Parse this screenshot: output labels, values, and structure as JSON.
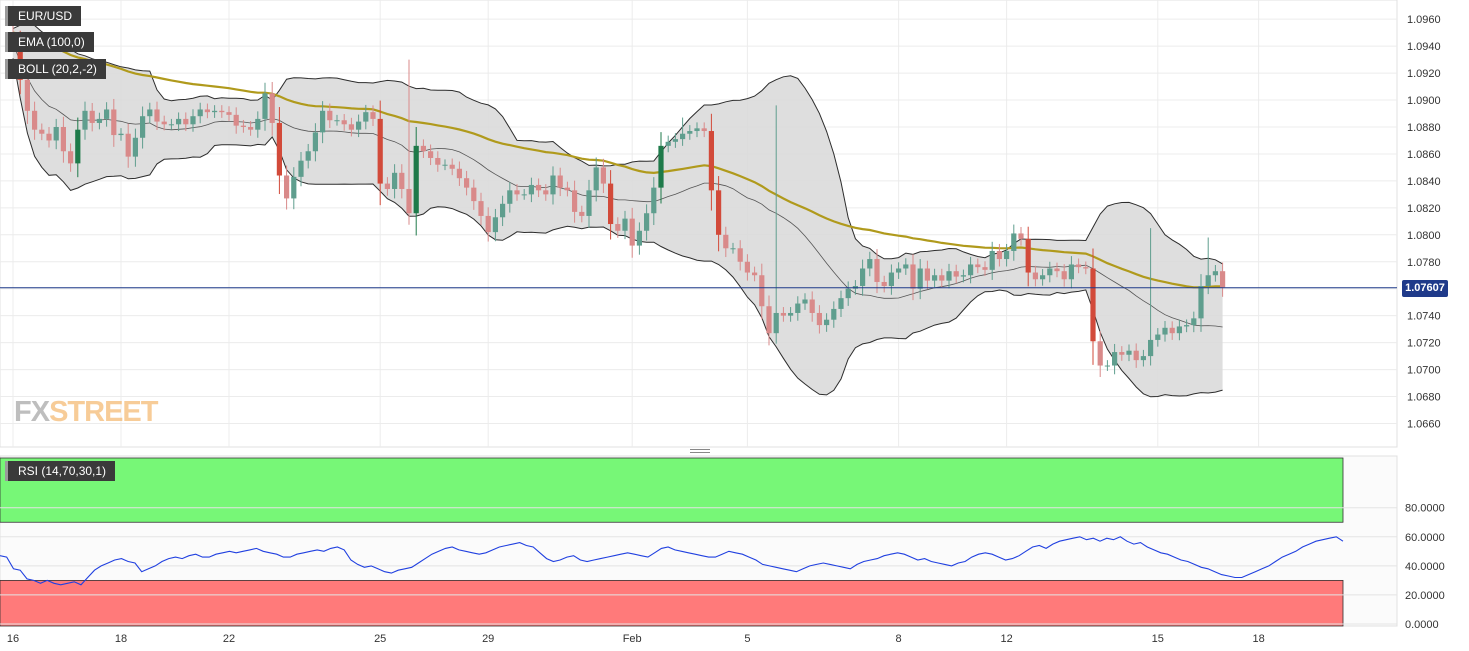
{
  "instrument": "EUR/USD",
  "indicators": {
    "ema_label": "EMA (100,0)",
    "boll_label": "BOLL (20,2,-2)",
    "rsi_label": "RSI (14,70,30,1)"
  },
  "last_price": "1.07607",
  "logo": {
    "fx": "FX",
    "street": "STREET"
  },
  "colors": {
    "up": "#5f9e8e",
    "up_strong": "#1e7a4a",
    "down": "#d98a8a",
    "down_strong": "#d24a3a",
    "ema": "#b09a1c",
    "band_fill": "#dadada",
    "last_price_line": "#1f3a8a",
    "rsi_line": "#2040e0",
    "rsi_overbought_zone": "#77f777",
    "rsi_oversold_zone": "#ff7a7a"
  },
  "chart_data": [
    {
      "type": "candlestick",
      "title": "",
      "y_ticks": [
        "1.0960",
        "1.0940",
        "1.0920",
        "1.0900",
        "1.0880",
        "1.0860",
        "1.0840",
        "1.0820",
        "1.0800",
        "1.0780",
        "1.0760",
        "1.0740",
        "1.0720",
        "1.0700",
        "1.0680",
        "1.0660"
      ],
      "ylim": [
        1.0647,
        1.0972
      ],
      "x_ticks": [
        {
          "label": "16",
          "i": 0
        },
        {
          "label": "18",
          "i": 15
        },
        {
          "label": "22",
          "i": 30
        },
        {
          "label": "25",
          "i": 51
        },
        {
          "label": "29",
          "i": 66
        },
        {
          "label": "Feb",
          "i": 86
        },
        {
          "label": "5",
          "i": 102
        },
        {
          "label": "8",
          "i": 123
        },
        {
          "label": "12",
          "i": 138
        },
        {
          "label": "15",
          "i": 159
        },
        {
          "label": "18",
          "i": 173
        }
      ],
      "grid": true,
      "last_price": 1.07607,
      "close": [
        1.0942,
        1.0915,
        1.0892,
        1.0878,
        1.0875,
        1.087,
        1.088,
        1.0862,
        1.0853,
        1.0878,
        1.0892,
        1.0883,
        1.0886,
        1.0893,
        1.0874,
        1.0875,
        1.0858,
        1.0872,
        1.0888,
        1.0893,
        1.0884,
        1.0882,
        1.0882,
        1.0886,
        1.0882,
        1.0888,
        1.0893,
        1.0891,
        1.0892,
        1.0891,
        1.0889,
        1.0881,
        1.088,
        1.0878,
        1.0886,
        1.0905,
        1.0883,
        1.0844,
        1.0827,
        1.0843,
        1.0855,
        1.0862,
        1.0876,
        1.0892,
        1.0885,
        1.0885,
        1.0882,
        1.0878,
        1.0884,
        1.0891,
        1.0886,
        1.0838,
        1.0834,
        1.0846,
        1.0834,
        1.0816,
        1.0866,
        1.0862,
        1.0857,
        1.0852,
        1.0852,
        1.0849,
        1.0842,
        1.0835,
        1.0825,
        1.0814,
        1.0802,
        1.0813,
        1.0823,
        1.0833,
        1.083,
        1.083,
        1.0837,
        1.0833,
        1.083,
        1.0844,
        1.0835,
        1.0833,
        1.0817,
        1.0814,
        1.0833,
        1.085,
        1.0838,
        1.0808,
        1.0803,
        1.0812,
        1.0792,
        1.0803,
        1.0816,
        1.0835,
        1.0866,
        1.0869,
        1.0871,
        1.0875,
        1.0877,
        1.0879,
        1.0877,
        1.0833,
        1.08,
        1.079,
        1.079,
        1.078,
        1.0772,
        1.077,
        1.0747,
        1.0727,
        1.0742,
        1.074,
        1.0742,
        1.0749,
        1.0752,
        1.0742,
        1.0733,
        1.0737,
        1.0745,
        1.0753,
        1.076,
        1.0762,
        1.0775,
        1.0782,
        1.0765,
        1.0762,
        1.0772,
        1.0775,
        1.0778,
        1.076,
        1.0775,
        1.0766,
        1.077,
        1.0766,
        1.0773,
        1.0769,
        1.077,
        1.0778,
        1.0776,
        1.0774,
        1.0788,
        1.0782,
        1.0788,
        1.0801,
        1.0797,
        1.0772,
        1.0767,
        1.077,
        1.0775,
        1.0773,
        1.0767,
        1.0778,
        1.0776,
        1.0775,
        1.0721,
        1.0703,
        1.0703,
        1.0713,
        1.0711,
        1.0714,
        1.0707,
        1.071,
        1.0722,
        1.0726,
        1.0731,
        1.0727,
        1.0732,
        1.0733,
        1.0738,
        1.0762,
        1.077,
        1.0773,
        1.0761
      ],
      "highs": [
        {
          "i": 55,
          "value": 1.093
        },
        {
          "i": 93,
          "value": 1.0887
        },
        {
          "i": 106,
          "value": 1.0896
        },
        {
          "i": 158,
          "value": 1.0805
        },
        {
          "i": 166,
          "value": 1.0798
        },
        {
          "i": 183,
          "value": 1.0785
        }
      ]
    },
    {
      "type": "line",
      "title": "",
      "y_ticks": [
        "80.0000",
        "60.0000",
        "40.0000",
        "20.0000",
        "0.0000"
      ],
      "ylim": [
        0,
        100
      ],
      "levels": {
        "overbought": 70,
        "oversold": 30
      },
      "values": [
        47,
        46,
        38,
        37,
        31,
        30,
        28,
        30,
        28,
        27,
        28,
        29,
        27,
        32,
        37,
        40,
        42,
        44,
        45,
        43,
        42,
        36,
        38,
        40,
        43,
        45,
        46,
        45,
        47,
        48,
        46,
        46,
        48,
        49,
        50,
        49,
        50,
        51,
        52,
        50,
        49,
        48,
        46,
        46,
        48,
        49,
        50,
        51,
        50,
        52,
        53,
        51,
        44,
        41,
        39,
        40,
        38,
        36,
        35,
        37,
        38,
        39,
        42,
        45,
        48,
        50,
        52,
        53,
        51,
        50,
        49,
        48,
        49,
        51,
        53,
        54,
        55,
        56,
        54,
        53,
        49,
        45,
        43,
        44,
        46,
        47,
        44,
        43,
        44,
        45,
        46,
        47,
        48,
        49,
        48,
        47,
        46,
        49,
        52,
        53,
        51,
        50,
        49,
        48,
        47,
        46,
        46,
        48,
        50,
        49,
        48,
        46,
        44,
        41,
        40,
        39,
        38,
        37,
        36,
        38,
        40,
        41,
        42,
        41,
        40,
        39,
        38,
        41,
        43,
        44,
        45,
        47,
        48,
        49,
        48,
        46,
        44,
        45,
        43,
        42,
        41,
        40,
        42,
        43,
        46,
        48,
        49,
        48,
        46,
        44,
        45,
        47,
        50,
        53,
        54,
        52,
        55,
        57,
        58,
        59,
        60,
        58,
        59,
        57,
        59,
        58,
        60,
        57,
        55,
        56,
        53,
        51,
        49,
        48,
        46,
        44,
        43,
        41,
        39,
        38,
        36,
        34,
        33,
        32,
        32,
        34,
        36,
        38,
        40,
        43,
        46,
        48,
        50,
        53,
        55,
        57,
        58,
        59,
        60,
        57
      ]
    }
  ]
}
